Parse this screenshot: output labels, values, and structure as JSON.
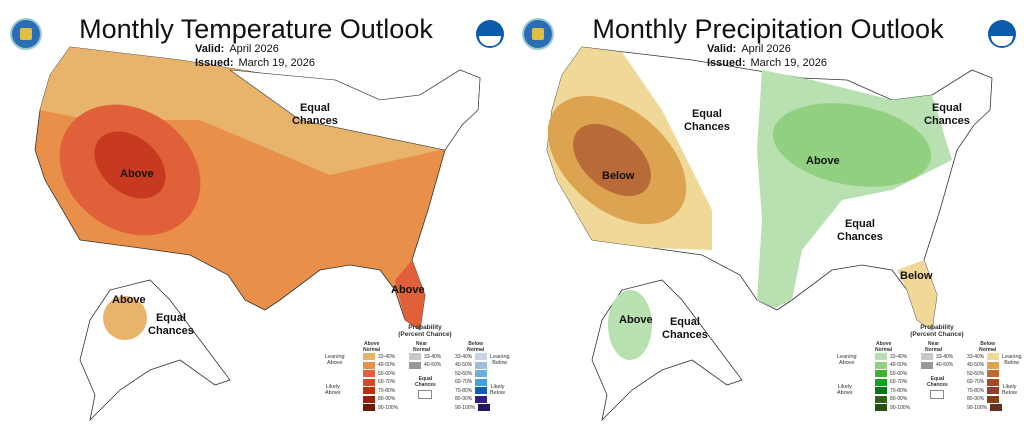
{
  "panels": [
    {
      "title": "Monthly Temperature Outlook",
      "valid_label": "Valid:",
      "valid": "April 2026",
      "issued_label": "Issued:",
      "issued": "March 19, 2026",
      "labels": {
        "main": "Above",
        "ec": "Equal\nChances",
        "fl": "Above",
        "ak": "Above",
        "ak_ec": "Equal\nChances"
      },
      "legend": {
        "title": "Probability",
        "subtitle": "(Percent Chance)",
        "above": "Above\nNormal",
        "near": "Near\nNormal",
        "below": "Below\nNormal",
        "ec": "Equal\nChances",
        "lean_above": "Leaning\nAbove",
        "likely_above": "Likely\nAbove",
        "lean_below": "Leaning\nBelow",
        "likely_below": "Likely\nBelow",
        "ranges": [
          "33-40%",
          "40-50%",
          "50-60%",
          "60-70%",
          "70-80%",
          "80-90%",
          "90-100%"
        ],
        "above_colors": [
          "#e8b46c",
          "#e8904a",
          "#e0603a",
          "#d04a28",
          "#b83010",
          "#982008",
          "#701800"
        ],
        "below_colors": [
          "#c8d4ec",
          "#a0bce0",
          "#6cb0e0",
          "#40a0e0",
          "#1060b0",
          "#302080",
          "#201860"
        ]
      }
    },
    {
      "title": "Monthly Precipitation Outlook",
      "valid_label": "Valid:",
      "valid": "April 2026",
      "issued_label": "Issued:",
      "issued": "March 19, 2026",
      "labels": {
        "main": "Below",
        "ec": "Equal\nChances",
        "ec2": "Equal\nChances",
        "above": "Above",
        "ec3": "Equal\nChances",
        "se": "Below",
        "ak": "Above",
        "ak_ec": "Equal\nChances"
      },
      "legend": {
        "title": "Probability",
        "subtitle": "(Percent Chance)",
        "above": "Above\nNormal",
        "near": "Near\nNormal",
        "below": "Below\nNormal",
        "ec": "Equal\nChances",
        "lean_above": "Leaning\nAbove",
        "likely_above": "Likely\nAbove",
        "lean_below": "Leaning\nBelow",
        "likely_below": "Likely\nBelow",
        "ranges": [
          "33-40%",
          "40-50%",
          "50-60%",
          "60-70%",
          "70-80%",
          "80-90%",
          "90-100%"
        ],
        "above_colors": [
          "#b8e0b0",
          "#90d080",
          "#40b030",
          "#10a020",
          "#007818",
          "#306018",
          "#285010"
        ],
        "below_colors": [
          "#f0d898",
          "#dca450",
          "#c06a30",
          "#a04a28",
          "#904030",
          "#804010",
          "#603020"
        ]
      }
    }
  ],
  "near_ranges": [
    "33-40%",
    "40-50%"
  ],
  "near_colors": [
    "#c8c8c8",
    "#999999"
  ]
}
